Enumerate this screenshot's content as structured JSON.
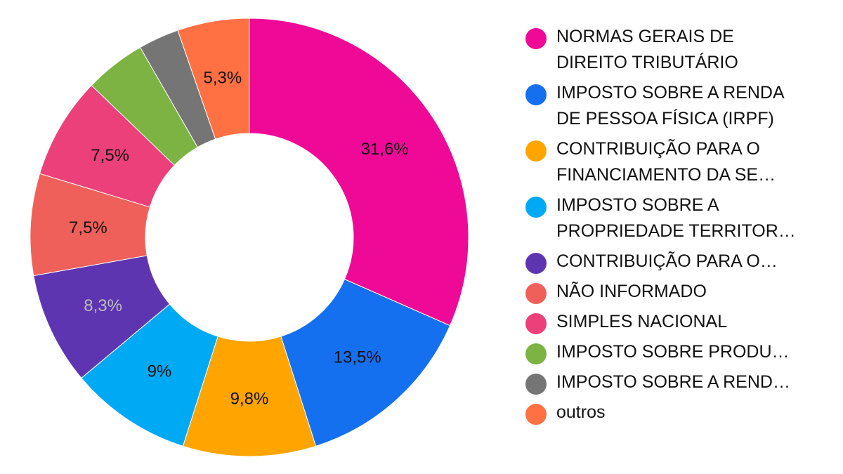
{
  "chart_data": {
    "type": "pie",
    "donut": true,
    "legend_position": "right",
    "slices": [
      {
        "label": "NORMAS GERAIS DE\nDIREITO TRIBUTÁRIO",
        "value": 31.6,
        "display": "31,6%",
        "color": "#EE0A97",
        "label_color": "#111111"
      },
      {
        "label": "IMPOSTO SOBRE A RENDA\nDE PESSOA FÍSICA (IRPF)",
        "value": 13.5,
        "display": "13,5%",
        "color": "#1570EF",
        "label_color": "#111111"
      },
      {
        "label": "CONTRIBUIÇÃO PARA O\nFINANCIAMENTO DA SE…",
        "value": 9.8,
        "display": "9,8%",
        "color": "#FFA400",
        "label_color": "#111111"
      },
      {
        "label": "IMPOSTO SOBRE A\nPROPRIEDADE TERRITOR…",
        "value": 9.0,
        "display": "9%",
        "color": "#00A9F4",
        "label_color": "#111111"
      },
      {
        "label": "CONTRIBUIÇÃO PARA O…",
        "value": 8.3,
        "display": "8,3%",
        "color": "#5E35B1",
        "label_color": "#BDBDBD"
      },
      {
        "label": "NÃO INFORMADO",
        "value": 7.5,
        "display": "7,5%",
        "color": "#F0605A",
        "label_color": "#111111"
      },
      {
        "label": "SIMPLES NACIONAL",
        "value": 7.5,
        "display": "7,5%",
        "color": "#EC407A",
        "label_color": "#111111"
      },
      {
        "label": "IMPOSTO SOBRE PRODU…",
        "value": 4.5,
        "display": "",
        "color": "#7CB342",
        "label_color": "#111111"
      },
      {
        "label": "IMPOSTO SOBRE A REND…",
        "value": 3.0,
        "display": "",
        "color": "#757575",
        "label_color": "#111111"
      },
      {
        "label": "outros",
        "value": 5.3,
        "display": "5,3%",
        "color": "#FF7043",
        "label_color": "#111111"
      }
    ]
  }
}
